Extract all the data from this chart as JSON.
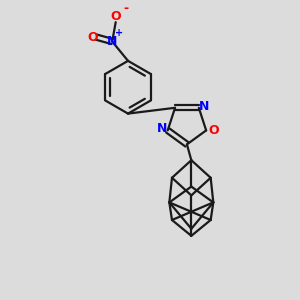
{
  "background_color": "#dcdcdc",
  "bond_color": "#1a1a1a",
  "n_color": "#0000ff",
  "o_color": "#ff0000",
  "line_width": 1.6,
  "font_size_atoms": 8,
  "dbo": 0.035,
  "xlim": [
    -1.5,
    1.5
  ],
  "ylim": [
    -1.7,
    1.7
  ]
}
